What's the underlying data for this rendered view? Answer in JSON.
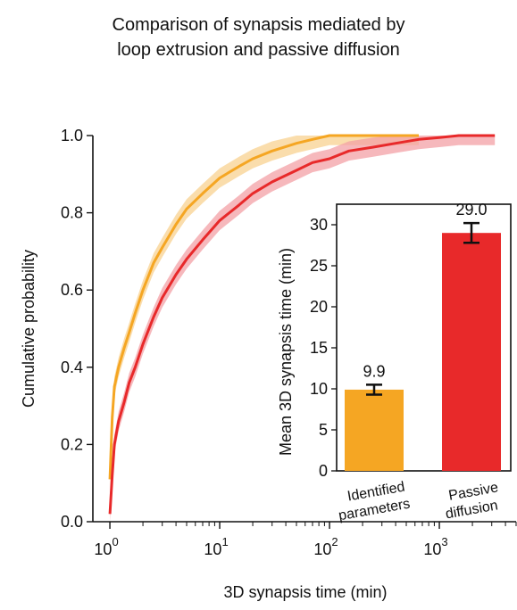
{
  "chart_data": [
    {
      "type": "line",
      "title_lines": [
        "Comparison of synapsis mediated by",
        "loop extrusion and passive diffusion"
      ],
      "xlabel": "3D synapsis time (min)",
      "ylabel": "Cumulative probability",
      "xscale": "log",
      "xlim": [
        0.7,
        5000
      ],
      "ylim": [
        0.0,
        1.0
      ],
      "x_tick_values": [
        1,
        10,
        100,
        1000
      ],
      "x_tick_labels": [
        {
          "base": "10",
          "exp": "0"
        },
        {
          "base": "10",
          "exp": "1"
        },
        {
          "base": "10",
          "exp": "2"
        },
        {
          "base": "10",
          "exp": "3"
        }
      ],
      "y_ticks": [
        0.0,
        0.2,
        0.4,
        0.6,
        0.8,
        1.0
      ],
      "y_tick_labels": [
        "0.0",
        "0.2",
        "0.4",
        "0.6",
        "0.8",
        "1.0"
      ],
      "grid": false,
      "series": [
        {
          "color": "#f5a623",
          "band_color": "#f8d190",
          "x": [
            1,
            1.05,
            1.1,
            1.2,
            1.35,
            1.5,
            1.7,
            2.0,
            2.5,
            3,
            4,
            5,
            7,
            10,
            15,
            20,
            30,
            50,
            70,
            100,
            150,
            250,
            400,
            650
          ],
          "y": [
            0.11,
            0.27,
            0.35,
            0.4,
            0.45,
            0.49,
            0.54,
            0.6,
            0.67,
            0.71,
            0.77,
            0.81,
            0.85,
            0.89,
            0.92,
            0.94,
            0.96,
            0.98,
            0.99,
            1.0,
            1.0,
            1.0,
            1.0,
            1.0
          ],
          "band": 0.025
        },
        {
          "color": "#e8292a",
          "band_color": "#f3a0a6",
          "x": [
            1,
            1.05,
            1.1,
            1.2,
            1.35,
            1.5,
            1.7,
            2.0,
            2.5,
            3,
            4,
            5,
            7,
            10,
            15,
            20,
            30,
            50,
            70,
            100,
            150,
            250,
            400,
            650,
            1000,
            1500,
            2500,
            3200
          ],
          "y": [
            0.02,
            0.12,
            0.2,
            0.26,
            0.31,
            0.36,
            0.4,
            0.46,
            0.53,
            0.58,
            0.64,
            0.68,
            0.73,
            0.78,
            0.82,
            0.85,
            0.88,
            0.91,
            0.93,
            0.94,
            0.96,
            0.97,
            0.98,
            0.99,
            0.995,
            1.0,
            1.0,
            1.0
          ],
          "band": 0.025
        }
      ]
    },
    {
      "type": "bar",
      "inset": true,
      "categories": [
        {
          "line1": "Identified",
          "line2": "parameters"
        },
        {
          "line1": "Passive",
          "line2": "diffusion"
        }
      ],
      "values": [
        9.9,
        29.0
      ],
      "value_labels": [
        "9.9",
        "29.0"
      ],
      "errors": [
        0.6,
        1.2
      ],
      "colors": [
        "#f5a623",
        "#e8292a"
      ],
      "ylabel": "Mean 3D synapsis time (min)",
      "ylim": [
        0,
        32.5
      ],
      "y_ticks": [
        0,
        5,
        10,
        15,
        20,
        25,
        30
      ],
      "y_tick_labels": [
        "0",
        "5",
        "10",
        "15",
        "20",
        "25",
        "30"
      ]
    }
  ]
}
